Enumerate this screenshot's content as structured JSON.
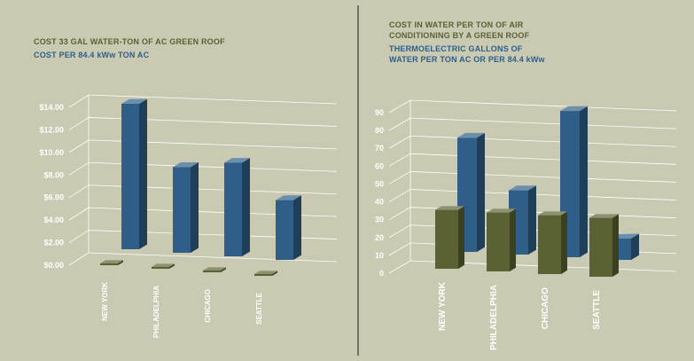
{
  "colors": {
    "background": "#c9cab1",
    "green_series": "#5a6233",
    "blue_series": "#2f5f88",
    "axis_text": "#ffffff",
    "grid": "#ffffff"
  },
  "chart_data": [
    {
      "type": "bar",
      "legend": [
        {
          "text": "COST 33 GAL WATER-TON OF AC GREEN ROOF",
          "color": "#5a6233"
        },
        {
          "text": "COST PER 84.4 kWw TON AC",
          "color": "#2f5f88"
        }
      ],
      "categories": [
        "NEW YORK",
        "PHILADELPHIA",
        "CHICAGO",
        "SEATTLE"
      ],
      "series": [
        {
          "name": "COST 33 GAL WATER-TON OF AC GREEN ROOF",
          "values": [
            0.02,
            0.02,
            0.02,
            0.02
          ]
        },
        {
          "name": "COST PER 84.4 kWw TON AC",
          "values": [
            12.9,
            7.6,
            8.3,
            5.3
          ]
        }
      ],
      "ytick_labels": [
        "$0.00",
        "$2.00",
        "$4.00",
        "$6.00",
        "$8.00",
        "$10.00",
        "$12.00",
        "$14.00"
      ],
      "ylim": [
        0,
        14
      ],
      "grid": true,
      "projection": "3d"
    },
    {
      "type": "bar",
      "legend": [
        {
          "text": "COST IN WATER PER TON OF AIR CONDITIONING BY A GREEN ROOF",
          "color": "#5a6233"
        },
        {
          "text": "THERMOELECTRIC GALLONS OF WATER PER TON AC OR PER 84.4 kWw",
          "color": "#2f5f88"
        }
      ],
      "categories": [
        "NEW YORK",
        "PHILADELPHIA",
        "CHICAGO",
        "SEATTLE"
      ],
      "series": [
        {
          "name": "COST IN WATER PER TON OF AIR CONDITIONING BY A GREEN ROOF",
          "values": [
            33,
            33,
            33,
            33
          ]
        },
        {
          "name": "THERMOELECTRIC GALLONS OF WATER PER TON AC OR PER 84.4 kWw",
          "values": [
            64,
            36,
            82,
            12
          ]
        }
      ],
      "ytick_labels": [
        "0",
        "10",
        "20",
        "30",
        "40",
        "50",
        "60",
        "70",
        "80",
        "90"
      ],
      "ylim": [
        0,
        90
      ],
      "grid": true,
      "projection": "3d"
    }
  ]
}
